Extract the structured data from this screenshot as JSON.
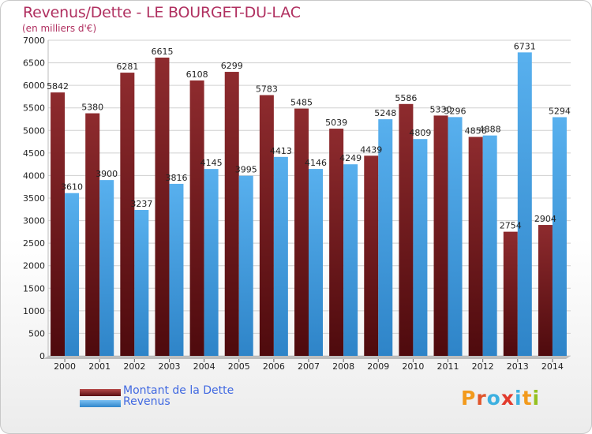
{
  "title": "Revenus/Dette - LE BOURGET-DU-LAC",
  "subtitle": "(en milliers d'€)",
  "logo": {
    "text": "Proxiti",
    "letter_colors": [
      "#f29a1c",
      "#e0552b",
      "#3db0e0",
      "#e23a2c",
      "#3db0e0",
      "#f29a1c",
      "#94c11f"
    ]
  },
  "chart_data": {
    "type": "bar",
    "categories": [
      "2000",
      "2001",
      "2002",
      "2003",
      "2004",
      "2005",
      "2006",
      "2007",
      "2008",
      "2009",
      "2010",
      "2011",
      "2012",
      "2013",
      "2014"
    ],
    "series": [
      {
        "name": "Montant de la Dette",
        "color": "#7a1c1f",
        "values": [
          5842,
          5380,
          6281,
          6615,
          6108,
          6299,
          5783,
          5485,
          5039,
          4439,
          5586,
          5330,
          4856,
          2754,
          2904
        ],
        "labels": [
          "5842",
          "5380",
          "6281",
          "6615",
          "6108",
          "6299",
          "5783",
          "5485",
          "5039",
          "4439",
          "5586",
          "5330",
          "4856",
          "2754",
          "2904"
        ]
      },
      {
        "name": "Revenus",
        "color": "#4aa3e6",
        "values": [
          3610,
          3900,
          3237,
          3816,
          4145,
          3995,
          4413,
          4146,
          4249,
          5248,
          4809,
          5296,
          4888,
          6731,
          5294
        ],
        "labels": [
          "3610",
          "3900",
          "3237",
          "3816",
          "4145",
          "3995",
          "4413",
          "4146",
          "4249",
          "5248",
          "4809",
          "5296",
          "4888",
          "6731",
          "5294"
        ]
      }
    ],
    "ylim": [
      0,
      7000
    ],
    "yticks": [
      0,
      500,
      1000,
      1500,
      2000,
      2500,
      3000,
      3500,
      4000,
      4500,
      5000,
      5500,
      6000,
      6500,
      7000
    ],
    "grid": true,
    "legend": "bottom-left"
  }
}
